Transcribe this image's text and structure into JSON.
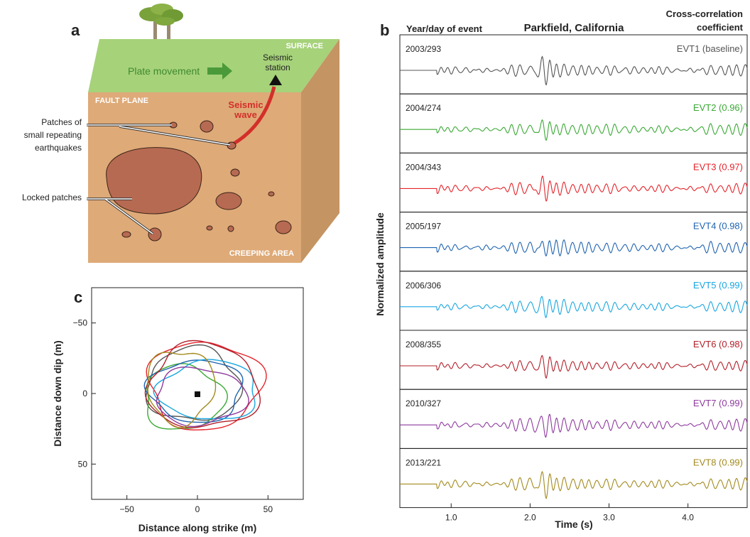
{
  "panel_a": {
    "label": "a",
    "surface_label": "SURFACE",
    "fault_plane_label": "FAULT PLANE",
    "creeping_label": "CREEPING AREA",
    "plate_movement": "Plate movement",
    "seismic_station_line1": "Seismic",
    "seismic_station_line2": "station",
    "seismic_wave_line1": "Seismic",
    "seismic_wave_line2": "wave",
    "patches_line1": "Patches of",
    "patches_line2": "small repeating",
    "patches_line3": "earthquakes",
    "locked_patches": "Locked patches",
    "colors": {
      "surface": "#a6d27a",
      "fault": "#deaa78",
      "side": "#c59463",
      "patch": "#b76a52",
      "wave": "#d32f2a",
      "arrow": "#4a9a3a"
    }
  },
  "panel_b": {
    "label": "b",
    "left_header": "Year/day of event",
    "title": "Parkfield, California",
    "right_header_line1": "Cross-correlation",
    "right_header_line2": "coefficient",
    "ylabel": "Normalized amplitude",
    "xlabel": "Time (s)",
    "xticks": [
      "1.0",
      "2.0",
      "3.0",
      "4.0"
    ]
  },
  "panel_c": {
    "label": "c",
    "xlabel": "Distance along strike (m)",
    "ylabel": "Distance down dip (m)",
    "xticks": [
      "−50",
      "0",
      "50"
    ],
    "yticks": [
      "−50",
      "0",
      "50"
    ]
  },
  "chart_data": [
    {
      "type": "line",
      "panel": "b",
      "title": "Parkfield, California",
      "xlabel": "Time (s)",
      "ylabel": "Normalized amplitude",
      "xlim": [
        0.35,
        4.75
      ],
      "xticks": [
        1.0,
        2.0,
        3.0,
        4.0
      ],
      "onset_time": 0.82,
      "peak_time": 2.15,
      "series": [
        {
          "name": "EVT1 (baseline)",
          "date": "2003/293",
          "color": "#555555",
          "cc": "baseline"
        },
        {
          "name": "EVT2 (0.96)",
          "date": "2004/274",
          "color": "#3aa935",
          "cc": 0.96
        },
        {
          "name": "EVT3 (0.97)",
          "date": "2004/343",
          "color": "#e5242b",
          "cc": 0.97
        },
        {
          "name": "EVT4 (0.98)",
          "date": "2005/197",
          "color": "#1f63b0",
          "cc": 0.98
        },
        {
          "name": "EVT5 (0.99)",
          "date": "2006/306",
          "color": "#1aa6e0",
          "cc": 0.99
        },
        {
          "name": "EVT6 (0.98)",
          "date": "2008/355",
          "color": "#b3202a",
          "cc": 0.98
        },
        {
          "name": "EVT7 (0.99)",
          "date": "2010/327",
          "color": "#8e3a9e",
          "cc": 0.99
        },
        {
          "name": "EVT8 (0.99)",
          "date": "2013/221",
          "color": "#a38a1e",
          "cc": 0.99
        }
      ]
    },
    {
      "type": "scatter",
      "panel": "c",
      "xlabel": "Distance along strike (m)",
      "ylabel": "Distance down dip (m)",
      "xlim": [
        -75,
        75
      ],
      "ylim": [
        -75,
        75
      ],
      "y_inverted": true,
      "center_marker": [
        0,
        0
      ],
      "ruptures": [
        {
          "color": "#555555",
          "cx": -3,
          "cy": -6,
          "rx": 33,
          "ry": 26
        },
        {
          "color": "#3aa935",
          "cx": -10,
          "cy": 3,
          "rx": 28,
          "ry": 23
        },
        {
          "color": "#e5242b",
          "cx": 5,
          "cy": -6,
          "rx": 40,
          "ry": 31
        },
        {
          "color": "#1f63b0",
          "cx": -1,
          "cy": -2,
          "rx": 33,
          "ry": 22
        },
        {
          "color": "#1aa6e0",
          "cx": 8,
          "cy": -2,
          "rx": 35,
          "ry": 21
        },
        {
          "color": "#b3202a",
          "cx": 4,
          "cy": -5,
          "rx": 39,
          "ry": 30
        },
        {
          "color": "#8e3a9e",
          "cx": 2,
          "cy": 2,
          "rx": 32,
          "ry": 20
        },
        {
          "color": "#a38a1e",
          "cx": -12,
          "cy": -5,
          "rx": 24,
          "ry": 26
        }
      ]
    }
  ]
}
